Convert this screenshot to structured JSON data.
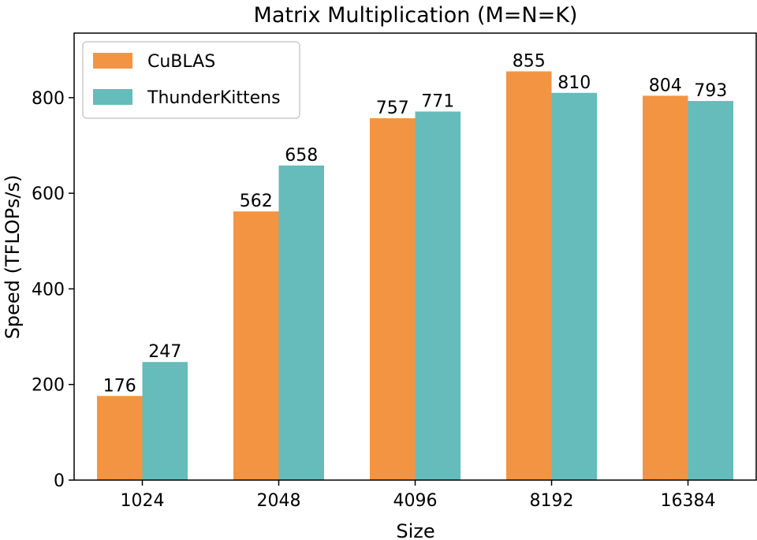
{
  "chart_data": {
    "type": "bar",
    "title": "Matrix Multiplication (M=N=K)",
    "xlabel": "Size",
    "ylabel": "Speed (TFLOPs/s)",
    "categories": [
      "1024",
      "2048",
      "4096",
      "8192",
      "16384"
    ],
    "series": [
      {
        "name": "CuBLAS",
        "values": [
          176,
          562,
          757,
          855,
          804
        ],
        "color": "#F39443"
      },
      {
        "name": "ThunderKittens",
        "values": [
          247,
          658,
          771,
          810,
          793
        ],
        "color": "#66BBBB"
      }
    ],
    "ylim": [
      0,
      935
    ],
    "yticks": [
      0,
      200,
      400,
      600,
      800
    ],
    "grid": false,
    "legend": "top-left"
  }
}
